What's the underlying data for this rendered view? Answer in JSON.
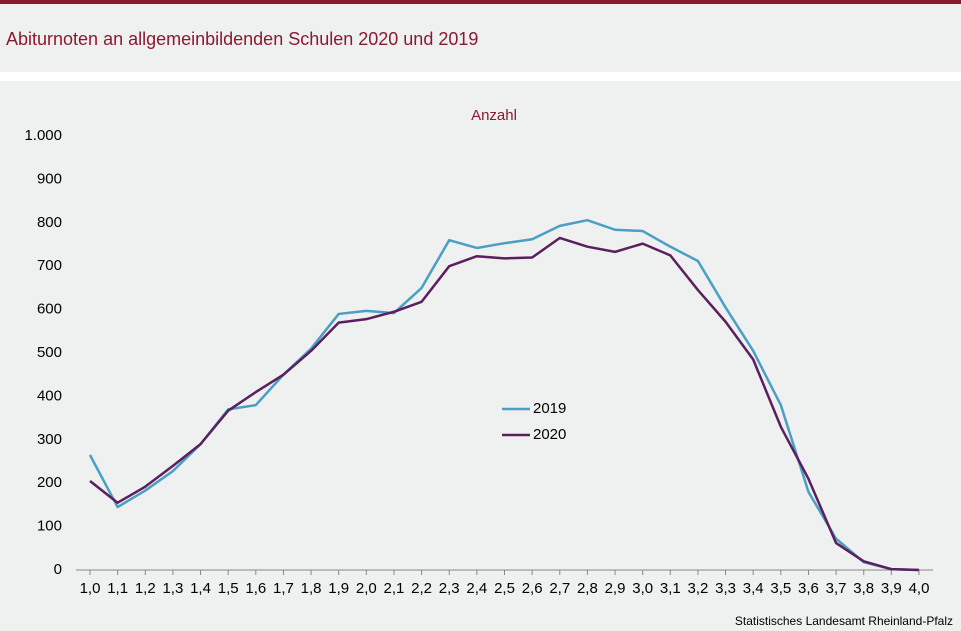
{
  "chart_data": {
    "type": "line",
    "title": "Abiturnoten an allgemeinbildenden Schulen 2020 und 2019",
    "y_label": "Anzahl",
    "source": "Statistisches Landesamt Rheinland-Pfalz",
    "categories": [
      "1,0",
      "1,1",
      "1,2",
      "1,3",
      "1,4",
      "1,5",
      "1,6",
      "1,7",
      "1,8",
      "1,9",
      "2,0",
      "2,1",
      "2,2",
      "2,3",
      "2,4",
      "2,5",
      "2,6",
      "2,7",
      "2,8",
      "2,9",
      "3,0",
      "3,1",
      "3,2",
      "3,3",
      "3,4",
      "3,5",
      "3,6",
      "3,7",
      "3,8",
      "3,9",
      "4,0"
    ],
    "series": [
      {
        "name": "2019",
        "color": "#4a9fc4",
        "values": [
          265,
          145,
          183,
          228,
          290,
          370,
          380,
          450,
          510,
          590,
          597,
          592,
          650,
          760,
          742,
          753,
          762,
          793,
          806,
          784,
          781,
          745,
          712,
          605,
          505,
          380,
          180,
          72,
          18,
          2,
          0
        ]
      },
      {
        "name": "2020",
        "color": "#5b1f5e",
        "values": [
          205,
          155,
          192,
          240,
          290,
          367,
          410,
          450,
          505,
          570,
          578,
          595,
          618,
          700,
          723,
          718,
          720,
          765,
          745,
          733,
          752,
          725,
          645,
          572,
          485,
          330,
          210,
          62,
          20,
          2,
          0
        ]
      }
    ],
    "ylim": [
      0,
      1000
    ],
    "yticks": [
      0,
      100,
      200,
      300,
      400,
      500,
      600,
      700,
      800,
      900,
      {
        "value": 1000,
        "label": "1.000"
      }
    ],
    "grid": false,
    "legend": "center"
  }
}
